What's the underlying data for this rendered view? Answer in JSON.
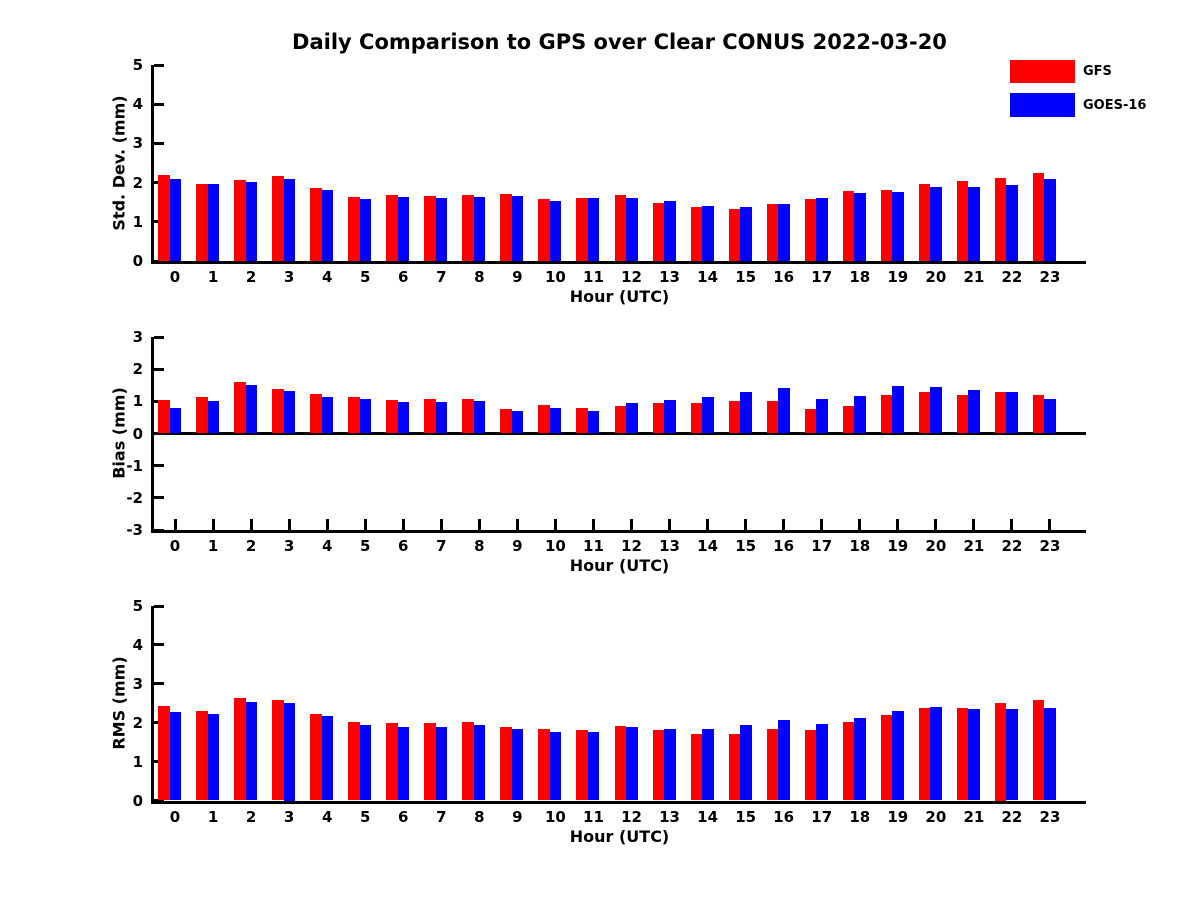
{
  "title": "Daily Comparison to GPS over Clear CONUS 2022-03-20",
  "legend": {
    "items": [
      {
        "label": "GFS",
        "color": "#ff0000"
      },
      {
        "label": "GOES-16",
        "color": "#0000ff"
      }
    ]
  },
  "colors": {
    "gfs": "#ff0000",
    "goes16": "#0000ff",
    "axis": "#000000",
    "background": "#ffffff"
  },
  "chart_data": [
    {
      "type": "bar",
      "name": "std-dev",
      "ylabel": "Std. Dev. (mm)",
      "xlabel": "Hour (UTC)",
      "ylim": [
        0,
        5
      ],
      "yticks": [
        5,
        4,
        3,
        2,
        1,
        0
      ],
      "grid": false,
      "legend_position": "top-right",
      "categories": [
        0,
        1,
        2,
        3,
        4,
        5,
        6,
        7,
        8,
        9,
        10,
        11,
        12,
        13,
        14,
        15,
        16,
        17,
        18,
        19,
        20,
        21,
        22,
        23
      ],
      "series": [
        {
          "name": "GFS",
          "color": "#ff0000",
          "values": [
            2.2,
            1.96,
            2.06,
            2.16,
            1.85,
            1.62,
            1.68,
            1.66,
            1.69,
            1.7,
            1.57,
            1.6,
            1.68,
            1.49,
            1.37,
            1.33,
            1.46,
            1.58,
            1.79,
            1.82,
            1.96,
            2.03,
            2.11,
            2.25
          ]
        },
        {
          "name": "GOES-16",
          "color": "#0000ff",
          "values": [
            2.09,
            1.96,
            2.01,
            2.09,
            1.8,
            1.59,
            1.62,
            1.6,
            1.64,
            1.66,
            1.52,
            1.6,
            1.6,
            1.52,
            1.41,
            1.38,
            1.46,
            1.61,
            1.74,
            1.75,
            1.88,
            1.89,
            1.94,
            2.09
          ]
        }
      ]
    },
    {
      "type": "bar",
      "name": "bias",
      "ylabel": "Bias (mm)",
      "xlabel": "Hour (UTC)",
      "ylim": [
        -3,
        3
      ],
      "yticks": [
        3,
        2,
        1,
        0,
        -1,
        -2,
        -3
      ],
      "grid": false,
      "categories": [
        0,
        1,
        2,
        3,
        4,
        5,
        6,
        7,
        8,
        9,
        10,
        11,
        12,
        13,
        14,
        15,
        16,
        17,
        18,
        19,
        20,
        21,
        22,
        23
      ],
      "series": [
        {
          "name": "GFS",
          "color": "#ff0000",
          "values": [
            1.03,
            1.15,
            1.61,
            1.37,
            1.22,
            1.13,
            1.04,
            1.06,
            1.07,
            0.76,
            0.89,
            0.79,
            0.87,
            0.94,
            0.95,
            1.02,
            1.02,
            0.76,
            0.87,
            1.2,
            1.3,
            1.2,
            1.3,
            1.21
          ]
        },
        {
          "name": "GOES-16",
          "color": "#0000ff",
          "values": [
            0.8,
            1.01,
            1.51,
            1.33,
            1.15,
            1.07,
            0.98,
            0.99,
            1.0,
            0.7,
            0.8,
            0.69,
            0.94,
            1.05,
            1.13,
            1.29,
            1.42,
            1.06,
            1.18,
            1.47,
            1.46,
            1.34,
            1.3,
            1.07
          ]
        }
      ]
    },
    {
      "type": "bar",
      "name": "rms",
      "ylabel": "RMS (mm)",
      "xlabel": "Hour (UTC)",
      "ylim": [
        0,
        5
      ],
      "yticks": [
        5,
        4,
        3,
        2,
        1,
        0
      ],
      "grid": false,
      "categories": [
        0,
        1,
        2,
        3,
        4,
        5,
        6,
        7,
        8,
        9,
        10,
        11,
        12,
        13,
        14,
        15,
        16,
        17,
        18,
        19,
        20,
        21,
        22,
        23
      ],
      "series": [
        {
          "name": "GFS",
          "color": "#ff0000",
          "values": [
            2.43,
            2.3,
            2.64,
            2.58,
            2.22,
            2.01,
            1.99,
            1.98,
            2.03,
            1.89,
            1.83,
            1.81,
            1.92,
            1.81,
            1.72,
            1.72,
            1.83,
            1.8,
            2.02,
            2.21,
            2.39,
            2.38,
            2.5,
            2.59
          ]
        },
        {
          "name": "GOES-16",
          "color": "#0000ff",
          "values": [
            2.27,
            2.22,
            2.53,
            2.5,
            2.18,
            1.95,
            1.89,
            1.89,
            1.95,
            1.85,
            1.76,
            1.77,
            1.88,
            1.84,
            1.84,
            1.93,
            2.06,
            1.96,
            2.11,
            2.29,
            2.41,
            2.34,
            2.34,
            2.39
          ]
        }
      ]
    }
  ]
}
